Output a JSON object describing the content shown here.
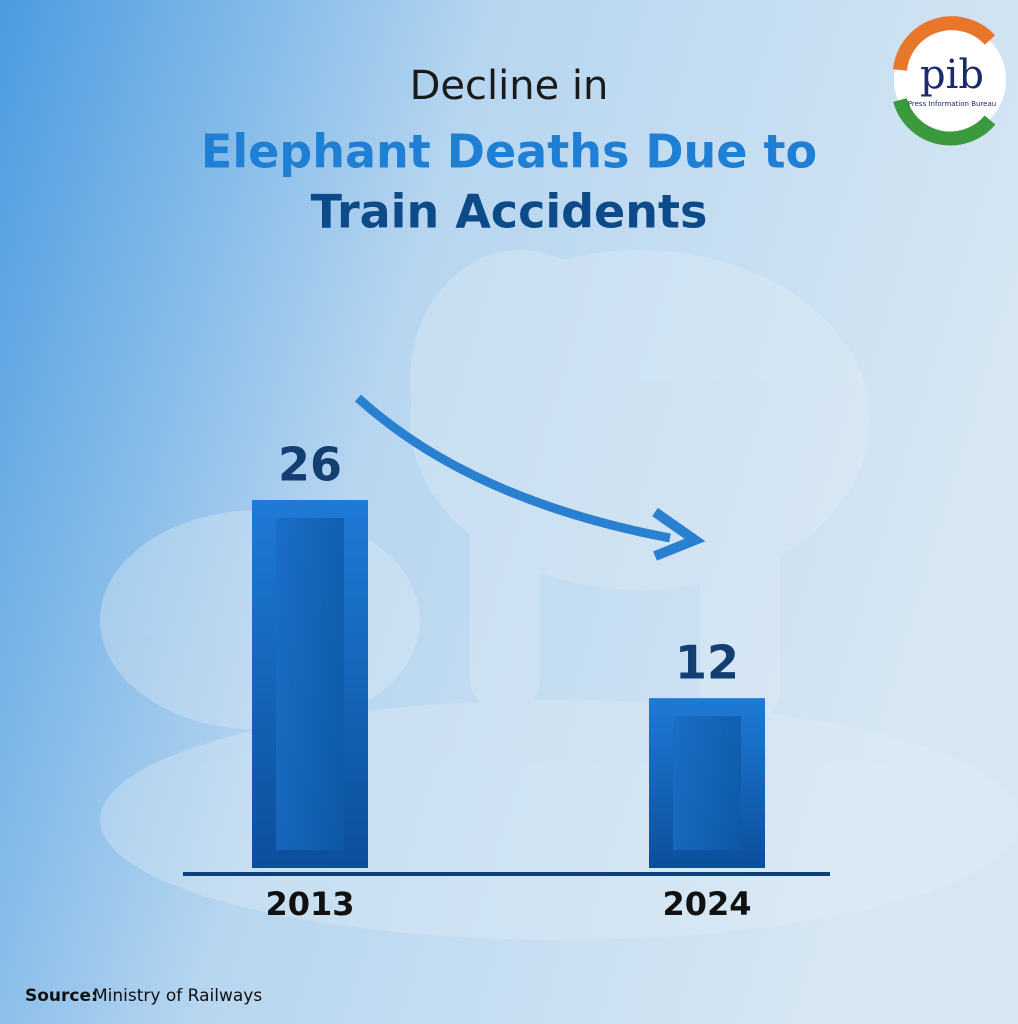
{
  "chart_data": {
    "type": "bar",
    "title": [
      "Decline in",
      "Elephant Deaths Due to",
      "Train Accidents"
    ],
    "categories": [
      "2013",
      "2024"
    ],
    "values": [
      26,
      12
    ],
    "color": "#1565c0",
    "source_label": "Source:",
    "source": "Ministry of Railways"
  },
  "logo": {
    "text": "pib",
    "subtitle": "Press Information Bureau"
  }
}
